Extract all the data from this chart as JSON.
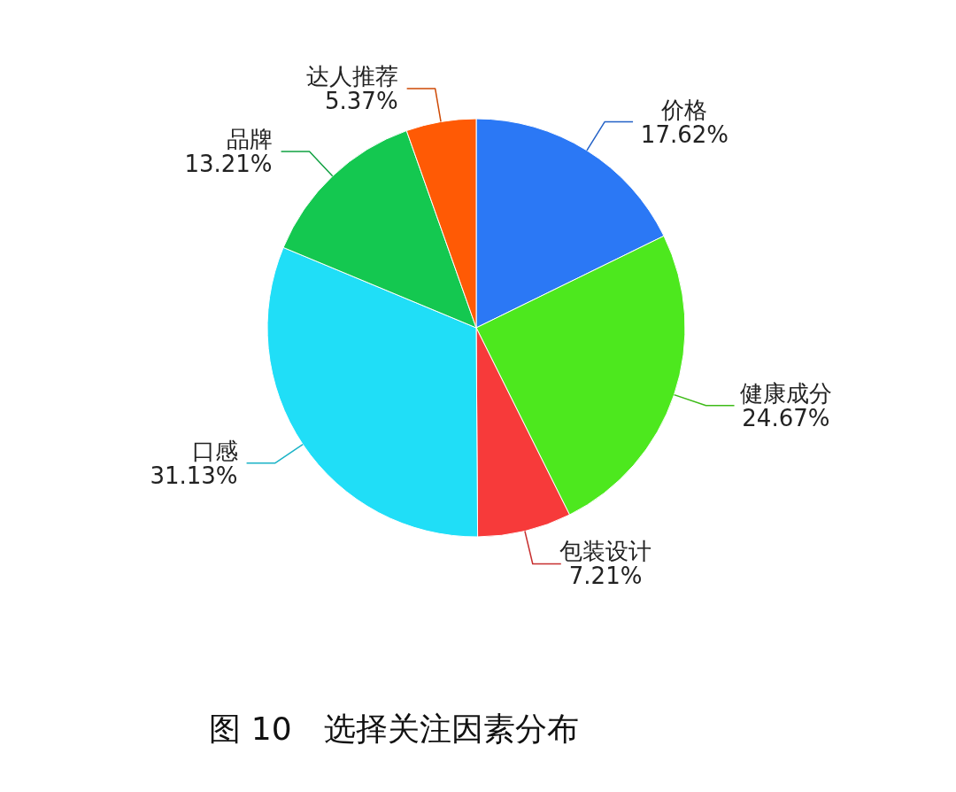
{
  "chart_data": {
    "type": "pie",
    "title": "图 10　选择关注因素分布",
    "categories": [
      "价格",
      "健康成分",
      "包装设计",
      "口感",
      "品牌",
      "达人推荐"
    ],
    "values": [
      17.62,
      24.67,
      7.21,
      31.13,
      13.21,
      5.37
    ],
    "value_labels": [
      "17.62%",
      "24.67%",
      "7.21%",
      "31.13%",
      "13.21%",
      "5.37%"
    ],
    "colors": [
      "#2b78f5",
      "#4de81e",
      "#f73a3a",
      "#20def7",
      "#14c850",
      "#ff5a05"
    ]
  }
}
